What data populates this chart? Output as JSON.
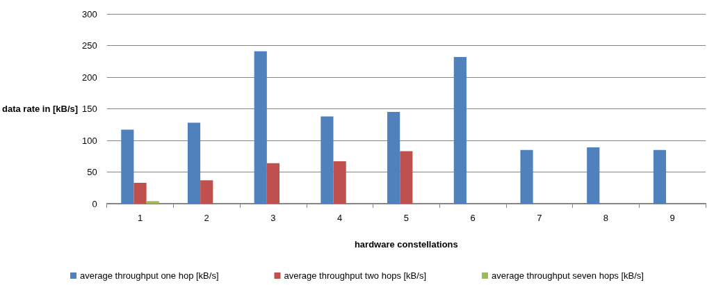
{
  "chart_data": {
    "type": "bar",
    "xlabel": "hardware constellations",
    "ylabel": "data rate in [kB/s]",
    "categories": [
      "1",
      "2",
      "3",
      "4",
      "5",
      "6",
      "7",
      "8",
      "9"
    ],
    "series": [
      {
        "name": "average throughput one hop [kB/s]",
        "color": "#4f81bd",
        "values": [
          117,
          128,
          241,
          138,
          145,
          232,
          85,
          89,
          85
        ]
      },
      {
        "name": "average throughput two hops [kB/s]",
        "color": "#c0504d",
        "values": [
          33,
          37,
          64,
          67,
          83,
          null,
          null,
          null,
          null
        ]
      },
      {
        "name": "average throughput seven hops [kB/s]",
        "color": "#9bbb59",
        "values": [
          4,
          null,
          null,
          null,
          null,
          null,
          null,
          null,
          null
        ]
      }
    ],
    "ylim": [
      0,
      300
    ],
    "yticks": [
      0,
      50,
      100,
      150,
      200,
      250,
      300
    ],
    "grid": "y",
    "legend": "bottom"
  }
}
